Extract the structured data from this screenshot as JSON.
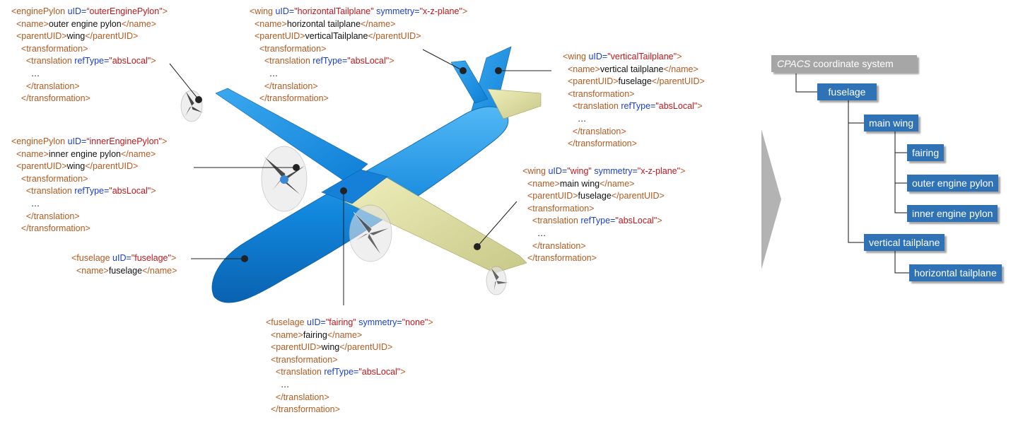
{
  "xml_blocks": {
    "outer_pylon": [
      [
        [
          "tg",
          "<enginePylon "
        ],
        [
          "at",
          "uID="
        ],
        [
          "av",
          "“outerEnginePylon\""
        ],
        [
          "tg",
          ">"
        ]
      ],
      [
        [
          "tg",
          "  <name>"
        ],
        [
          "tx",
          "outer engine pylon"
        ],
        [
          "tg",
          "</name>"
        ]
      ],
      [
        [
          "tg",
          "  <parentUID>"
        ],
        [
          "tx",
          "wing"
        ],
        [
          "tg",
          "</parentUID>"
        ]
      ],
      [
        [
          "tg",
          "    <transformation>"
        ]
      ],
      [
        [
          "tg",
          "      <translation "
        ],
        [
          "at",
          "refType="
        ],
        [
          "av",
          "\"absLocal\""
        ],
        [
          "tg",
          ">"
        ]
      ],
      [
        [
          "tx",
          "        …"
        ]
      ],
      [
        [
          "tg",
          "      </translation>"
        ]
      ],
      [
        [
          "tg",
          "    </transformation>"
        ]
      ]
    ],
    "inner_pylon": [
      [
        [
          "tg",
          "<enginePylon "
        ],
        [
          "at",
          "uID="
        ],
        [
          "av",
          "“innerEnginePylon\""
        ],
        [
          "tg",
          ">"
        ]
      ],
      [
        [
          "tg",
          "  <name>"
        ],
        [
          "tx",
          "inner engine pylon"
        ],
        [
          "tg",
          "</name>"
        ]
      ],
      [
        [
          "tg",
          "  <parentUID>"
        ],
        [
          "tx",
          "wing"
        ],
        [
          "tg",
          "</parentUID>"
        ]
      ],
      [
        [
          "tg",
          "    <transformation>"
        ]
      ],
      [
        [
          "tg",
          "      <translation "
        ],
        [
          "at",
          "refType="
        ],
        [
          "av",
          "\"absLocal\""
        ],
        [
          "tg",
          ">"
        ]
      ],
      [
        [
          "tx",
          "        …"
        ]
      ],
      [
        [
          "tg",
          "      </translation>"
        ]
      ],
      [
        [
          "tg",
          "    </transformation>"
        ]
      ]
    ],
    "fuselage": [
      [
        [
          "tg",
          "<fuselage "
        ],
        [
          "at",
          "uID="
        ],
        [
          "av",
          "\"fuselage\""
        ],
        [
          "tg",
          ">"
        ]
      ],
      [
        [
          "tg",
          "  <name>"
        ],
        [
          "tx",
          "fuselage"
        ],
        [
          "tg",
          "</name>"
        ]
      ]
    ],
    "horizontal": [
      [
        [
          "tg",
          "<wing "
        ],
        [
          "at",
          "uID="
        ],
        [
          "av",
          "\"horizontalTailplane\" "
        ],
        [
          "at",
          "symmetry="
        ],
        [
          "av",
          "\"x-z-plane\""
        ],
        [
          "tg",
          ">"
        ]
      ],
      [
        [
          "tg",
          "  <name>"
        ],
        [
          "tx",
          "horizontal tailplane"
        ],
        [
          "tg",
          "</name>"
        ]
      ],
      [
        [
          "tg",
          "  <parentUID>"
        ],
        [
          "tx",
          "verticalTailplane"
        ],
        [
          "tg",
          "</parentUID>"
        ]
      ],
      [
        [
          "tg",
          "    <transformation>"
        ]
      ],
      [
        [
          "tg",
          "      <translation "
        ],
        [
          "at",
          "refType="
        ],
        [
          "av",
          "\"absLocal\""
        ],
        [
          "tg",
          ">"
        ]
      ],
      [
        [
          "tx",
          "        …"
        ]
      ],
      [
        [
          "tg",
          "      </translation>"
        ]
      ],
      [
        [
          "tg",
          "    </transformation>"
        ]
      ]
    ],
    "vertical": [
      [
        [
          "tg",
          "<wing "
        ],
        [
          "at",
          "uID="
        ],
        [
          "av",
          "\"verticalTailplane\""
        ],
        [
          "tg",
          ">"
        ]
      ],
      [
        [
          "tg",
          "  <name>"
        ],
        [
          "tx",
          "vertical tailplane"
        ],
        [
          "tg",
          "</name>"
        ]
      ],
      [
        [
          "tg",
          "  <parentUID>"
        ],
        [
          "tx",
          "fuselage"
        ],
        [
          "tg",
          "</parentUID>"
        ]
      ],
      [
        [
          "tg",
          "  <transformation>"
        ]
      ],
      [
        [
          "tg",
          "    <translation "
        ],
        [
          "at",
          "refType="
        ],
        [
          "av",
          "\"absLocal\""
        ],
        [
          "tg",
          ">"
        ]
      ],
      [
        [
          "tx",
          "      …"
        ]
      ],
      [
        [
          "tg",
          "    </translation>"
        ]
      ],
      [
        [
          "tg",
          "  </transformation>"
        ]
      ]
    ],
    "wing": [
      [
        [
          "tg",
          "<wing "
        ],
        [
          "at",
          "uID="
        ],
        [
          "av",
          "\"wing\" "
        ],
        [
          "at",
          "symmetry="
        ],
        [
          "av",
          "\"x-z-plane\""
        ],
        [
          "tg",
          ">"
        ]
      ],
      [
        [
          "tg",
          "  <name>"
        ],
        [
          "tx",
          "main wing"
        ],
        [
          "tg",
          "</name>"
        ]
      ],
      [
        [
          "tg",
          "  <parentUID>"
        ],
        [
          "tx",
          "fuselage"
        ],
        [
          "tg",
          "</parentUID>"
        ]
      ],
      [
        [
          "tg",
          "  <transformation>"
        ]
      ],
      [
        [
          "tg",
          "    <translation "
        ],
        [
          "at",
          "refType="
        ],
        [
          "av",
          "\"absLocal\""
        ],
        [
          "tg",
          ">"
        ]
      ],
      [
        [
          "tx",
          "      …"
        ]
      ],
      [
        [
          "tg",
          "    </translation>"
        ]
      ],
      [
        [
          "tg",
          "  </transformation>"
        ]
      ]
    ],
    "fairing": [
      [
        [
          "tg",
          "<fuselage "
        ],
        [
          "at",
          "uID="
        ],
        [
          "av",
          "\"fairing\" "
        ],
        [
          "at",
          "symmetry="
        ],
        [
          "av",
          "\"none\""
        ],
        [
          "tg",
          ">"
        ]
      ],
      [
        [
          "tg",
          "  <name>"
        ],
        [
          "tx",
          "fairing"
        ],
        [
          "tg",
          "</name>"
        ]
      ],
      [
        [
          "tg",
          "  <parentUID>"
        ],
        [
          "tx",
          "wing"
        ],
        [
          "tg",
          "</parentUID>"
        ]
      ],
      [
        [
          "tg",
          "  <transformation>"
        ]
      ],
      [
        [
          "tg",
          "    <translation "
        ],
        [
          "at",
          "refType="
        ],
        [
          "av",
          "\"absLocal\""
        ],
        [
          "tg",
          ">"
        ]
      ],
      [
        [
          "tx",
          "      …"
        ]
      ],
      [
        [
          "tg",
          "    </translation>"
        ]
      ],
      [
        [
          "tg",
          "  </transformation>"
        ]
      ]
    ]
  },
  "tree": {
    "root_italic": "CPACS",
    "root_rest": " coordinate system",
    "fuselage": "fuselage",
    "main_wing": "main wing",
    "fairing": "fairing",
    "outer_pylon": "outer engine pylon",
    "inner_pylon": "inner engine pylon",
    "vertical_tailplane": "vertical tailplane",
    "horizontal_tailplane": "horizontal tailplane"
  },
  "colors": {
    "tag": "#b35a1f",
    "attribute": "#1a3fd1",
    "value": "#c0161c",
    "tree_node": "#2f72b5",
    "tree_root": "#a6a6a6",
    "fuselage_blue": "#1a8ee0",
    "wing_khaki": "#e3e3a6"
  }
}
